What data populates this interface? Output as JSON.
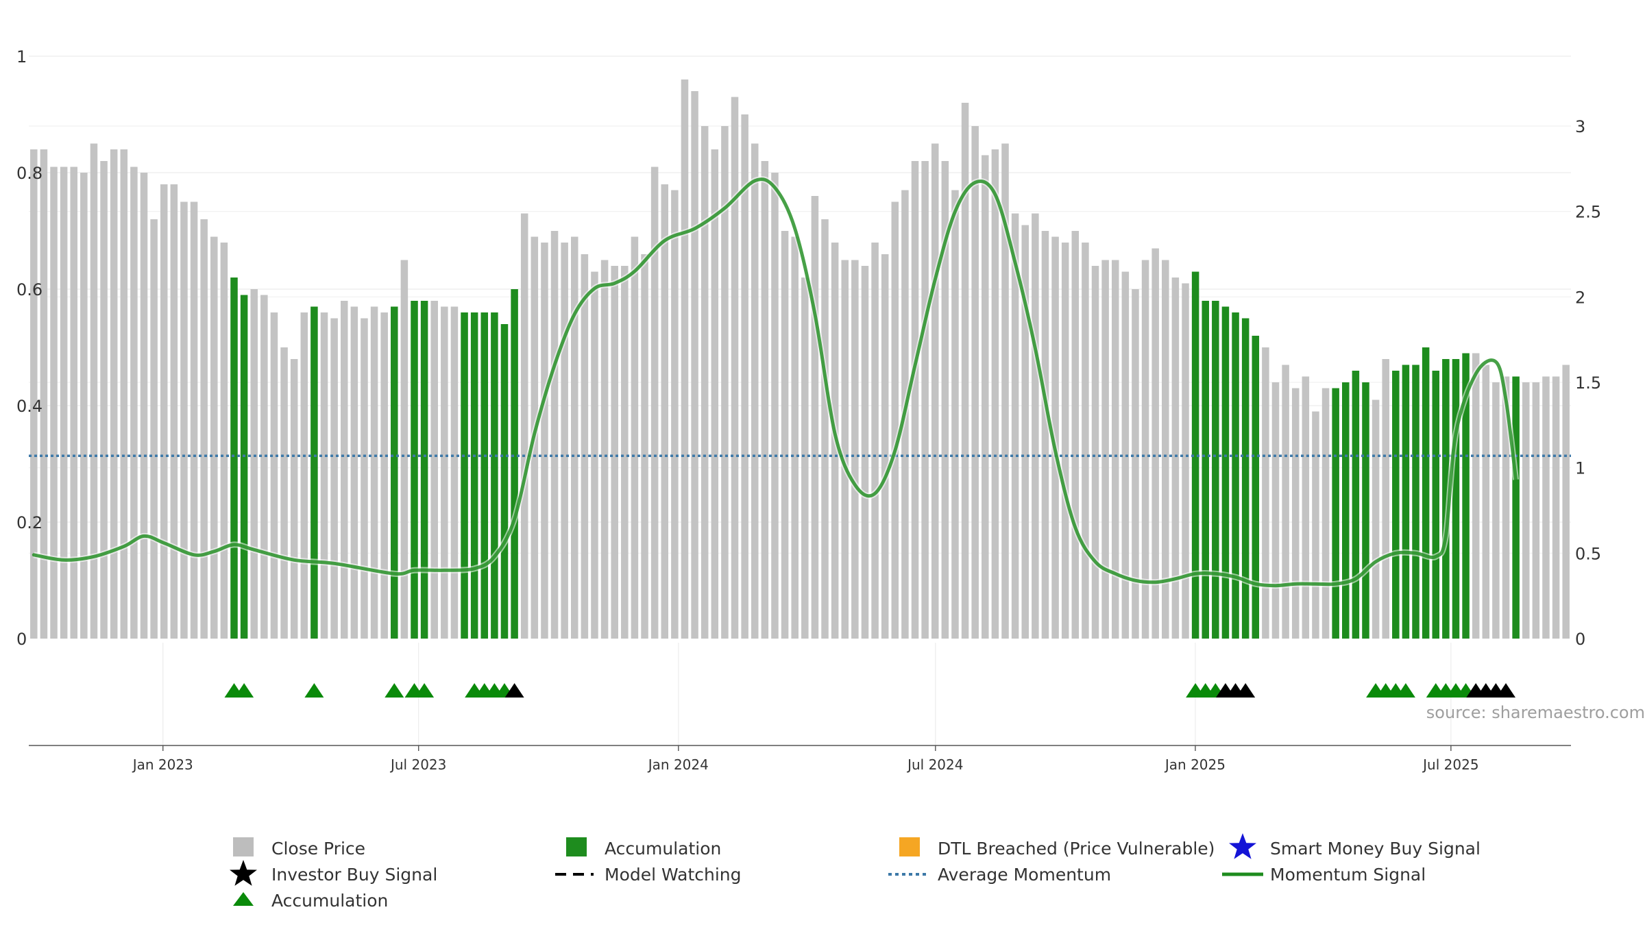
{
  "chart_data": {
    "type": "bar",
    "title": "",
    "source": "source: sharemaestro.com",
    "x_range": [
      "2022-09-28",
      "2025-09-24"
    ],
    "x_ticks": [
      {
        "date": "2023-01-01",
        "label": "Jan 2023"
      },
      {
        "date": "2023-07-01",
        "label": "Jul 2023"
      },
      {
        "date": "2024-01-01",
        "label": "Jan 2024"
      },
      {
        "date": "2024-07-01",
        "label": "Jul 2024"
      },
      {
        "date": "2025-01-01",
        "label": "Jan 2025"
      },
      {
        "date": "2025-07-01",
        "label": "Jul 2025"
      }
    ],
    "left_axis": {
      "ylim": [
        0,
        1
      ],
      "ticks": [
        0,
        0.2,
        0.4,
        0.6,
        0.8,
        1
      ],
      "tick_labels": [
        "0",
        "0.2",
        "0.4",
        "0.6",
        "0.8",
        "1"
      ]
    },
    "right_axis": {
      "ylim": [
        0,
        3.4
      ],
      "ticks": [
        0,
        0.5,
        1,
        1.5,
        2,
        2.5,
        3
      ],
      "tick_labels": [
        "0",
        "0.5",
        "1",
        "1.5",
        "2",
        "2.5",
        "3"
      ]
    },
    "series": [
      {
        "name": "Close Price",
        "axis": "left",
        "color": "#c3c3c3",
        "accumulation_color": "#1e8c1e",
        "values": [
          0.84,
          0.84,
          0.81,
          0.81,
          0.81,
          0.8,
          0.85,
          0.82,
          0.84,
          0.84,
          0.81,
          0.8,
          0.72,
          0.78,
          0.78,
          0.75,
          0.75,
          0.72,
          0.69,
          0.68,
          0.62,
          0.59,
          0.6,
          0.59,
          0.56,
          0.5,
          0.48,
          0.56,
          0.57,
          0.56,
          0.55,
          0.58,
          0.57,
          0.55,
          0.57,
          0.56,
          0.57,
          0.65,
          0.58,
          0.58,
          0.58,
          0.57,
          0.57,
          0.56,
          0.56,
          0.56,
          0.56,
          0.54,
          0.6,
          0.73,
          0.69,
          0.68,
          0.7,
          0.68,
          0.69,
          0.66,
          0.63,
          0.65,
          0.64,
          0.64,
          0.69,
          0.66,
          0.81,
          0.78,
          0.77,
          0.96,
          0.94,
          0.88,
          0.84,
          0.88,
          0.93,
          0.9,
          0.85,
          0.82,
          0.8,
          0.7,
          0.69,
          0.62,
          0.76,
          0.72,
          0.68,
          0.65,
          0.65,
          0.64,
          0.68,
          0.66,
          0.75,
          0.77,
          0.82,
          0.82,
          0.85,
          0.82,
          0.77,
          0.92,
          0.88,
          0.83,
          0.84,
          0.85,
          0.73,
          0.71,
          0.73,
          0.7,
          0.69,
          0.68,
          0.7,
          0.68,
          0.64,
          0.65,
          0.65,
          0.63,
          0.6,
          0.65,
          0.67,
          0.65,
          0.62,
          0.61,
          0.63,
          0.58,
          0.58,
          0.57,
          0.56,
          0.55,
          0.52,
          0.5,
          0.44,
          0.47,
          0.43,
          0.45,
          0.39,
          0.43,
          0.43,
          0.44,
          0.46,
          0.44,
          0.41,
          0.48,
          0.46,
          0.47,
          0.47,
          0.5,
          0.46,
          0.48,
          0.48,
          0.49,
          0.49,
          0.47,
          0.44,
          0.45,
          0.45,
          0.44,
          0.44,
          0.45,
          0.45,
          0.47
        ],
        "accumulation_flags": [
          0,
          0,
          0,
          0,
          0,
          0,
          0,
          0,
          0,
          0,
          0,
          0,
          0,
          0,
          0,
          0,
          0,
          0,
          0,
          0,
          1,
          1,
          0,
          0,
          0,
          0,
          0,
          0,
          1,
          0,
          0,
          0,
          0,
          0,
          0,
          0,
          1,
          0,
          1,
          1,
          0,
          0,
          0,
          1,
          1,
          1,
          1,
          1,
          1,
          0,
          0,
          0,
          0,
          0,
          0,
          0,
          0,
          0,
          0,
          0,
          0,
          0,
          0,
          0,
          0,
          0,
          0,
          0,
          0,
          0,
          0,
          0,
          0,
          0,
          0,
          0,
          0,
          0,
          0,
          0,
          0,
          0,
          0,
          0,
          0,
          0,
          0,
          0,
          0,
          0,
          0,
          0,
          0,
          0,
          0,
          0,
          0,
          0,
          0,
          0,
          0,
          0,
          0,
          0,
          0,
          0,
          0,
          0,
          0,
          0,
          0,
          0,
          0,
          0,
          0,
          0,
          1,
          1,
          1,
          1,
          1,
          1,
          1,
          0,
          0,
          0,
          0,
          0,
          0,
          0,
          1,
          1,
          1,
          1,
          0,
          0,
          1,
          1,
          1,
          1,
          1,
          1,
          1,
          1,
          0,
          0,
          0,
          0,
          1,
          0,
          0,
          0,
          0,
          0
        ]
      },
      {
        "name": "Momentum Signal",
        "axis": "right",
        "color": "#1e8c1e",
        "points": [
          [
            0,
            0.49
          ],
          [
            3,
            0.46
          ],
          [
            6,
            0.48
          ],
          [
            9,
            0.54
          ],
          [
            11,
            0.6
          ],
          [
            13,
            0.56
          ],
          [
            16,
            0.49
          ],
          [
            18,
            0.51
          ],
          [
            20,
            0.55
          ],
          [
            22,
            0.52
          ],
          [
            26,
            0.46
          ],
          [
            30,
            0.44
          ],
          [
            36,
            0.38
          ],
          [
            38,
            0.4
          ],
          [
            41,
            0.4
          ],
          [
            44,
            0.41
          ],
          [
            46,
            0.48
          ],
          [
            48,
            0.7
          ],
          [
            50,
            1.2
          ],
          [
            52,
            1.6
          ],
          [
            54,
            1.9
          ],
          [
            56,
            2.05
          ],
          [
            58,
            2.08
          ],
          [
            60,
            2.15
          ],
          [
            63,
            2.33
          ],
          [
            66,
            2.4
          ],
          [
            69,
            2.52
          ],
          [
            72,
            2.68
          ],
          [
            74,
            2.64
          ],
          [
            76,
            2.4
          ],
          [
            78,
            1.9
          ],
          [
            80,
            1.2
          ],
          [
            82,
            0.9
          ],
          [
            84,
            0.85
          ],
          [
            86,
            1.1
          ],
          [
            88,
            1.6
          ],
          [
            90,
            2.1
          ],
          [
            92,
            2.5
          ],
          [
            94,
            2.67
          ],
          [
            96,
            2.6
          ],
          [
            98,
            2.2
          ],
          [
            100,
            1.7
          ],
          [
            102,
            1.1
          ],
          [
            104,
            0.65
          ],
          [
            106,
            0.45
          ],
          [
            108,
            0.38
          ],
          [
            110,
            0.34
          ],
          [
            112,
            0.33
          ],
          [
            114,
            0.35
          ],
          [
            116,
            0.38
          ],
          [
            118,
            0.38
          ],
          [
            120,
            0.36
          ],
          [
            122,
            0.32
          ],
          [
            124,
            0.31
          ],
          [
            126,
            0.32
          ],
          [
            128,
            0.32
          ],
          [
            130,
            0.32
          ],
          [
            132,
            0.35
          ],
          [
            134,
            0.45
          ],
          [
            136,
            0.5
          ],
          [
            138,
            0.5
          ],
          [
            140,
            0.48
          ],
          [
            141,
            0.6
          ],
          [
            142,
            1.2
          ],
          [
            144,
            1.55
          ],
          [
            146,
            1.62
          ],
          [
            147,
            1.4
          ],
          [
            148,
            0.93
          ]
        ]
      },
      {
        "name": "Average Momentum",
        "axis": "right",
        "color": "#3d79a8",
        "value": 1.07
      }
    ],
    "markers": {
      "row_value": -0.1,
      "accumulation": [
        20,
        21,
        28,
        36,
        38,
        39,
        44,
        45,
        46,
        47,
        116,
        117,
        118,
        134,
        135,
        136,
        137,
        140,
        141,
        142,
        143
      ],
      "investor_buy": [
        48,
        119,
        120,
        121,
        144,
        145,
        146,
        147
      ]
    },
    "legend": {
      "close_price": {
        "label": "Close Price",
        "color": "#bdbdbd"
      },
      "accumulation_bar": {
        "label": "Accumulation",
        "color": "#1e8c1e"
      },
      "dtl": {
        "label": "DTL Breached (Price Vulnerable)",
        "color": "#f5a623"
      },
      "smart_money": {
        "label": "Smart Money Buy Signal",
        "color": "#1414d6"
      },
      "investor_buy": {
        "label": "Investor Buy Signal",
        "color": "#000000"
      },
      "model_watching": {
        "label": "Model Watching",
        "color": "#000000"
      },
      "average_momentum": {
        "label": "Average Momentum",
        "color": "#3d79a8"
      },
      "momentum_signal": {
        "label": "Momentum Signal",
        "color": "#1e8c1e"
      },
      "accumulation_marker": {
        "label": "Accumulation",
        "color": "#0a8a0a"
      }
    }
  }
}
